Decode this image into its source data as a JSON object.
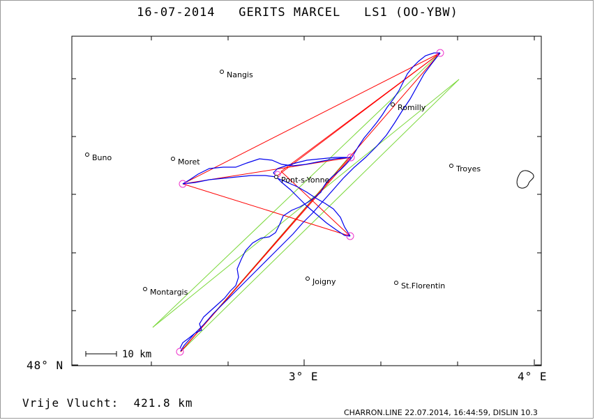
{
  "title": "16-07-2014   GERITS MARCEL   LS1 (OO-YBW)",
  "flight": {
    "label": "Vrije Vlucht:",
    "distance": "421.8 km"
  },
  "credit": "CHARRON.LINE 22.07.2014, 16:44:59, DISLIN 10.3",
  "axes": {
    "lat_label": "48° N",
    "lon_labels": [
      "3° E",
      "4° E"
    ]
  },
  "scale_bar": "10 km",
  "towns": [
    "Nangis",
    "Romilly",
    "Buno",
    "Moret",
    "Troyes",
    "Pont-s-Yonne",
    "Montargis",
    "Joigny",
    "St.Florentin"
  ],
  "colors": {
    "track": "#0000ff",
    "task": "#ff0000",
    "free": "#66dd22",
    "turnpoint": "#ee33cc",
    "frame": "#000000"
  }
}
